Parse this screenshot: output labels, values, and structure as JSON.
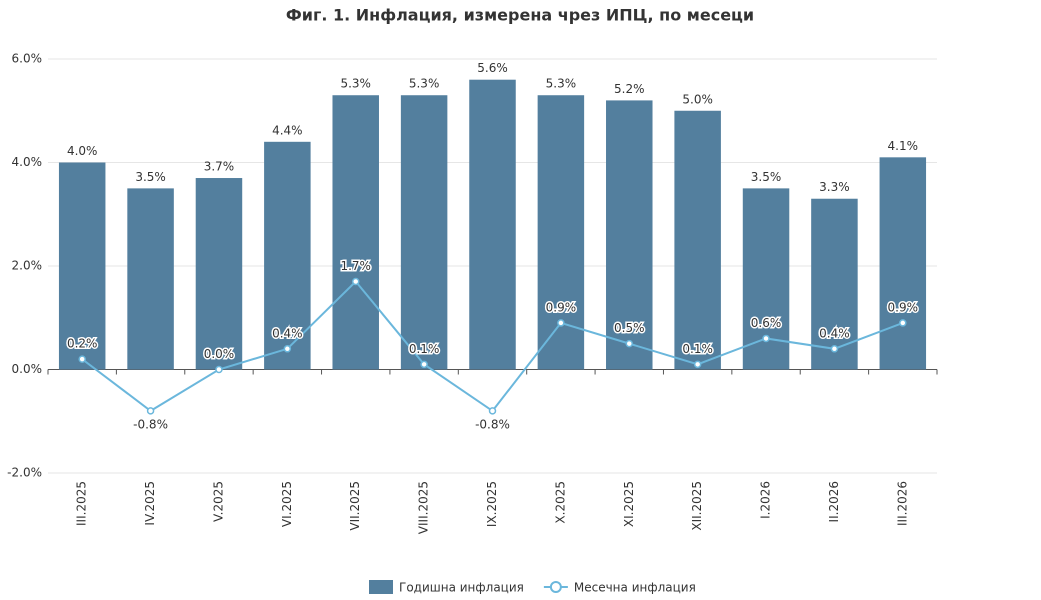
{
  "chart_data": {
    "type": "bar-line",
    "title": "Фиг. 1. Инфлация, измерена чрез ИПЦ, по месеци",
    "categories": [
      "III.2025",
      "IV.2025",
      "V.2025",
      "VI.2025",
      "VII.2025",
      "VIII.2025",
      "IX.2025",
      "X.2025",
      "XI.2025",
      "XII.2025",
      "I.2026",
      "II.2026",
      "III.2026"
    ],
    "series": [
      {
        "name": "Годишна инфлация",
        "type": "bar",
        "color": "#537f9e",
        "values": [
          4.0,
          3.5,
          3.7,
          4.4,
          5.3,
          5.3,
          5.6,
          5.3,
          5.2,
          5.0,
          3.5,
          3.3,
          4.1
        ],
        "value_labels": [
          "4.0%",
          "3.5%",
          "3.7%",
          "4.4%",
          "5.3%",
          "5.3%",
          "5.6%",
          "5.3%",
          "5.2%",
          "5.0%",
          "3.5%",
          "3.3%",
          "4.1%"
        ]
      },
      {
        "name": "Месечна инфлация",
        "type": "line",
        "color": "#6bb7dc",
        "values": [
          0.2,
          -0.8,
          0.0,
          0.4,
          1.7,
          0.1,
          -0.8,
          0.9,
          0.5,
          0.1,
          0.6,
          0.4,
          0.9
        ],
        "value_labels": [
          "0.2%",
          "-0.8%",
          "0.0%",
          "0.4%",
          "1.7%",
          "0.1%",
          "-0.8%",
          "0.9%",
          "0.5%",
          "0.1%",
          "0.6%",
          "0.4%",
          "0.9%"
        ]
      }
    ],
    "ylim": [
      -2,
      6
    ],
    "yticks": [
      {
        "value": -2,
        "label": "-2.0%"
      },
      {
        "value": 0,
        "label": "0.0%"
      },
      {
        "value": 2,
        "label": "2.0%"
      },
      {
        "value": 4,
        "label": "4.0%"
      },
      {
        "value": 6,
        "label": "6.0%"
      }
    ],
    "grid": true
  }
}
